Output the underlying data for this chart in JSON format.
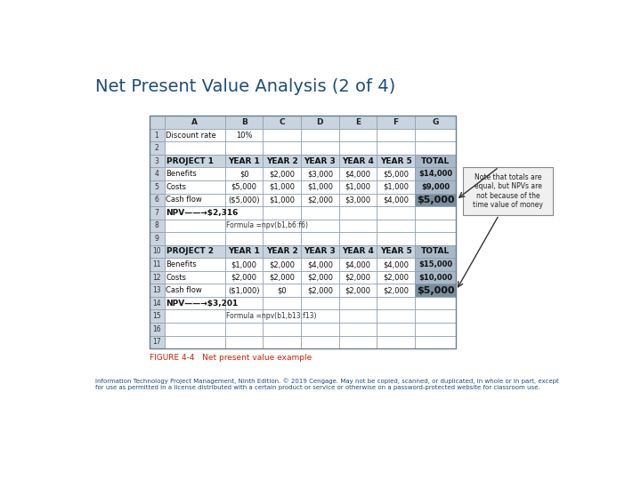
{
  "title": "Net Present Value Analysis (2 of 4)",
  "title_color": "#1F4E79",
  "title_fontsize": 14,
  "bg_color": "#FFFFFF",
  "table_bg": "#C8D8E4",
  "cell_bg": "#FFFFFF",
  "header_row_bg": "#C8D4DF",
  "project_header_bg": "#C8D4DF",
  "total_col_bg": "#A8B8C8",
  "cashflow_total_bg": "#7A8FA0",
  "figure_caption": "FIGURE 4-4   Net present value example",
  "figure_caption_color": "#CC2200",
  "footer_text": "Information Technology Project Management, Ninth Edition. © 2019 Cengage. May not be copied, scanned, or duplicated, in whole or in part, except\nfor use as permitted in a license distributed with a certain product or service or otherwise on a password-protected website for classroom use.",
  "footer_color": "#1F4E79",
  "note_text": "Note that totals are\nequal, but NPVs are\nnot because of the\ntime value of money",
  "rows": [
    [
      "1",
      "Discount rate",
      "10%",
      "",
      "",
      "",
      "",
      ""
    ],
    [
      "2",
      "",
      "",
      "",
      "",
      "",
      "",
      ""
    ],
    [
      "3",
      "PROJECT 1",
      "YEAR 1",
      "YEAR 2",
      "YEAR 3",
      "YEAR 4",
      "YEAR 5",
      "TOTAL"
    ],
    [
      "4",
      "Benefits",
      "$0",
      "$2,000",
      "$3,000",
      "$4,000",
      "$5,000",
      "$14,000"
    ],
    [
      "5",
      "Costs",
      "$5,000",
      "$1,000",
      "$1,000",
      "$1,000",
      "$1,000",
      "$9,000"
    ],
    [
      "6",
      "Cash flow",
      "($5,000)",
      "$1,000",
      "$2,000",
      "$3,000",
      "$4,000",
      "$5,000"
    ],
    [
      "7",
      "NPV——→$2,316",
      "",
      "",
      "",
      "",
      "",
      ""
    ],
    [
      "8",
      "",
      "Formula =npv(b1,b6:f6)",
      "",
      "",
      "",
      "",
      ""
    ],
    [
      "9",
      "",
      "",
      "",
      "",
      "",
      "",
      ""
    ],
    [
      "10",
      "PROJECT 2",
      "YEAR 1",
      "YEAR 2",
      "YEAR 3",
      "YEAR 4",
      "YEAR 5",
      "TOTAL"
    ],
    [
      "11",
      "Benefits",
      "$1,000",
      "$2,000",
      "$4,000",
      "$4,000",
      "$4,000",
      "$15,000"
    ],
    [
      "12",
      "Costs",
      "$2,000",
      "$2,000",
      "$2,000",
      "$2,000",
      "$2,000",
      "$10,000"
    ],
    [
      "13",
      "Cash flow",
      "($1,000)",
      "$0",
      "$2,000",
      "$2,000",
      "$2,000",
      "$5,000"
    ],
    [
      "14",
      "NPV——→$3,201",
      "",
      "",
      "",
      "",
      "",
      ""
    ],
    [
      "15",
      "",
      "Formula =npv(b1,b13:f13)",
      "",
      "",
      "",
      "",
      ""
    ],
    [
      "16",
      "",
      "",
      "",
      "",
      "",
      "",
      ""
    ],
    [
      "17",
      "",
      "",
      "",
      "",
      "",
      "",
      ""
    ]
  ],
  "col_headers": [
    "",
    "A",
    "B",
    "C",
    "D",
    "E",
    "F",
    "G"
  ]
}
